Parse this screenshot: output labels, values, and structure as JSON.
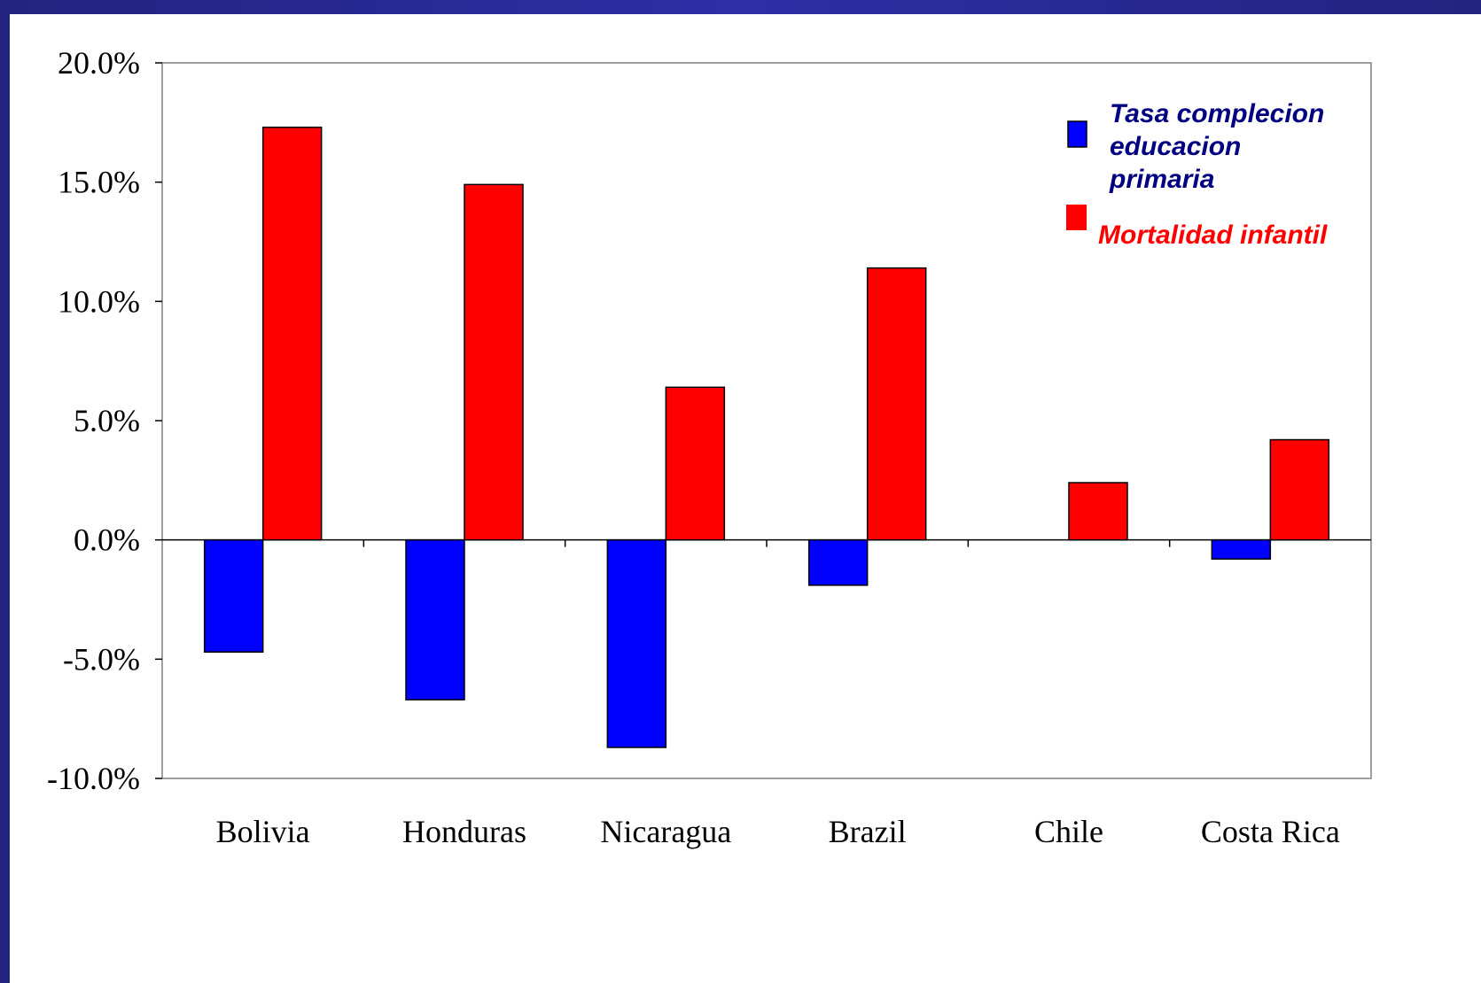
{
  "chart_data": {
    "type": "bar",
    "categories": [
      "Bolivia",
      "Honduras",
      "Nicaragua",
      "Brazil",
      "Chile",
      "Costa Rica"
    ],
    "series": [
      {
        "name": "Tasa complecion educacion primaria",
        "legend_lines": [
          "Tasa complecion",
          "educacion",
          "primaria"
        ],
        "color": "#0000ff",
        "values": [
          -4.7,
          -6.7,
          -8.7,
          -1.9,
          0.0,
          -0.8
        ]
      },
      {
        "name": "Mortalidad infantil",
        "legend_lines": [
          "Mortalidad infantil"
        ],
        "color": "#ff0000",
        "values": [
          17.3,
          14.9,
          6.4,
          11.4,
          2.4,
          4.2
        ]
      }
    ],
    "ylim": [
      -10.0,
      20.0
    ],
    "yticks": [
      "20.0%",
      "15.0%",
      "10.0%",
      "5.0%",
      "0.0%",
      "-5.0%",
      "-10.0%"
    ],
    "legend_position": "top-right",
    "grid": false
  }
}
